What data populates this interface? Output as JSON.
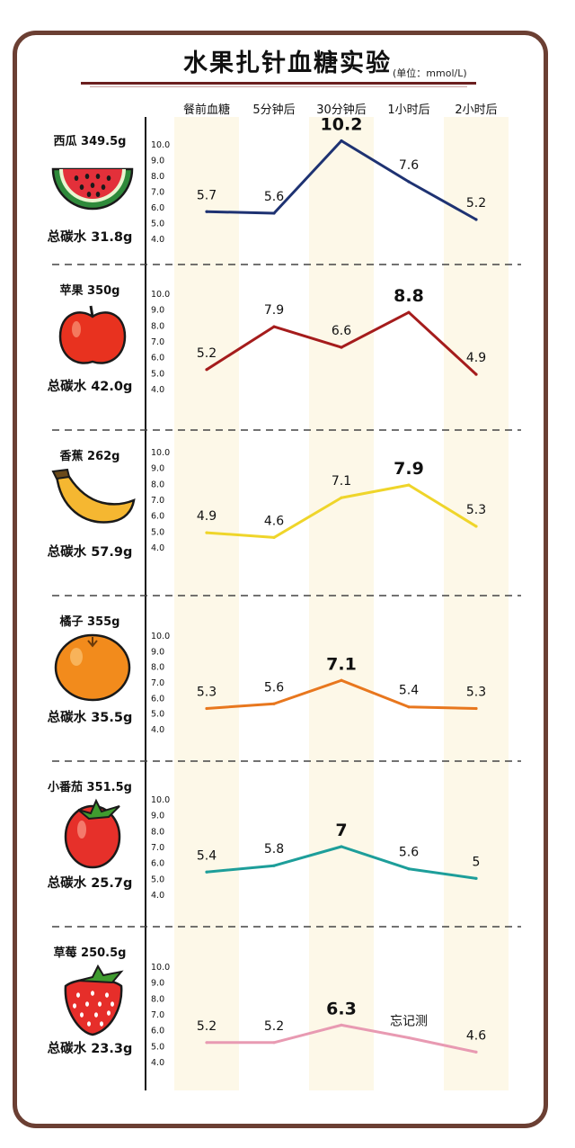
{
  "title": "水果扎针血糖实验",
  "unit": "(单位：mmol/L)",
  "chart_data": {
    "type": "line",
    "time_points": [
      "餐前血糖",
      "5分钟后",
      "30分钟后",
      "1小时后",
      "2小时后"
    ],
    "y_ticks": [
      "10.0",
      "9.0",
      "8.0",
      "7.0",
      "6.0",
      "5.0",
      "4.0"
    ],
    "ylim": [
      4,
      10
    ],
    "panels": [
      {
        "fruit": "西瓜 349.5g",
        "carbs": "总碳水 31.8g",
        "icon": "watermelon-icon",
        "color": "#1e3272",
        "values": [
          5.7,
          5.6,
          10.2,
          7.6,
          5.2
        ],
        "labels": [
          "5.7",
          "5.6",
          "10.2",
          "7.6",
          "5.2"
        ],
        "peak_index": 2
      },
      {
        "fruit": "苹果 350g",
        "carbs": "总碳水 42.0g",
        "icon": "apple-icon",
        "color": "#a51c1c",
        "values": [
          5.2,
          7.9,
          6.6,
          8.8,
          4.9
        ],
        "labels": [
          "5.2",
          "7.9",
          "6.6",
          "8.8",
          "4.9"
        ],
        "peak_index": 3
      },
      {
        "fruit": "香蕉 262g",
        "carbs": "总碳水 57.9g",
        "icon": "banana-icon",
        "color": "#efd52a",
        "values": [
          4.9,
          4.6,
          7.1,
          7.9,
          5.3
        ],
        "labels": [
          "4.9",
          "4.6",
          "7.1",
          "7.9",
          "5.3"
        ],
        "peak_index": 3
      },
      {
        "fruit": "橘子 355g",
        "carbs": "总碳水 35.5g",
        "icon": "orange-icon",
        "color": "#e8771e",
        "values": [
          5.3,
          5.6,
          7.1,
          5.4,
          5.3
        ],
        "labels": [
          "5.3",
          "5.6",
          "7.1",
          "5.4",
          "5.3"
        ],
        "peak_index": 2
      },
      {
        "fruit": "小番茄 351.5g",
        "carbs": "总碳水 25.7g",
        "icon": "tomato-icon",
        "color": "#1d9e9a",
        "values": [
          5.4,
          5.8,
          7,
          5.6,
          5
        ],
        "labels": [
          "5.4",
          "5.8",
          "7",
          "5.6",
          "5"
        ],
        "peak_index": 2
      },
      {
        "fruit": "草莓 250.5g",
        "carbs": "总碳水 23.3g",
        "icon": "strawberry-icon",
        "color": "#e89ab2",
        "values": [
          5.2,
          5.2,
          6.3,
          5.5,
          4.6
        ],
        "labels": [
          "5.2",
          "5.2",
          "6.3",
          "忘记测",
          "4.6"
        ],
        "peak_index": 2
      }
    ]
  }
}
